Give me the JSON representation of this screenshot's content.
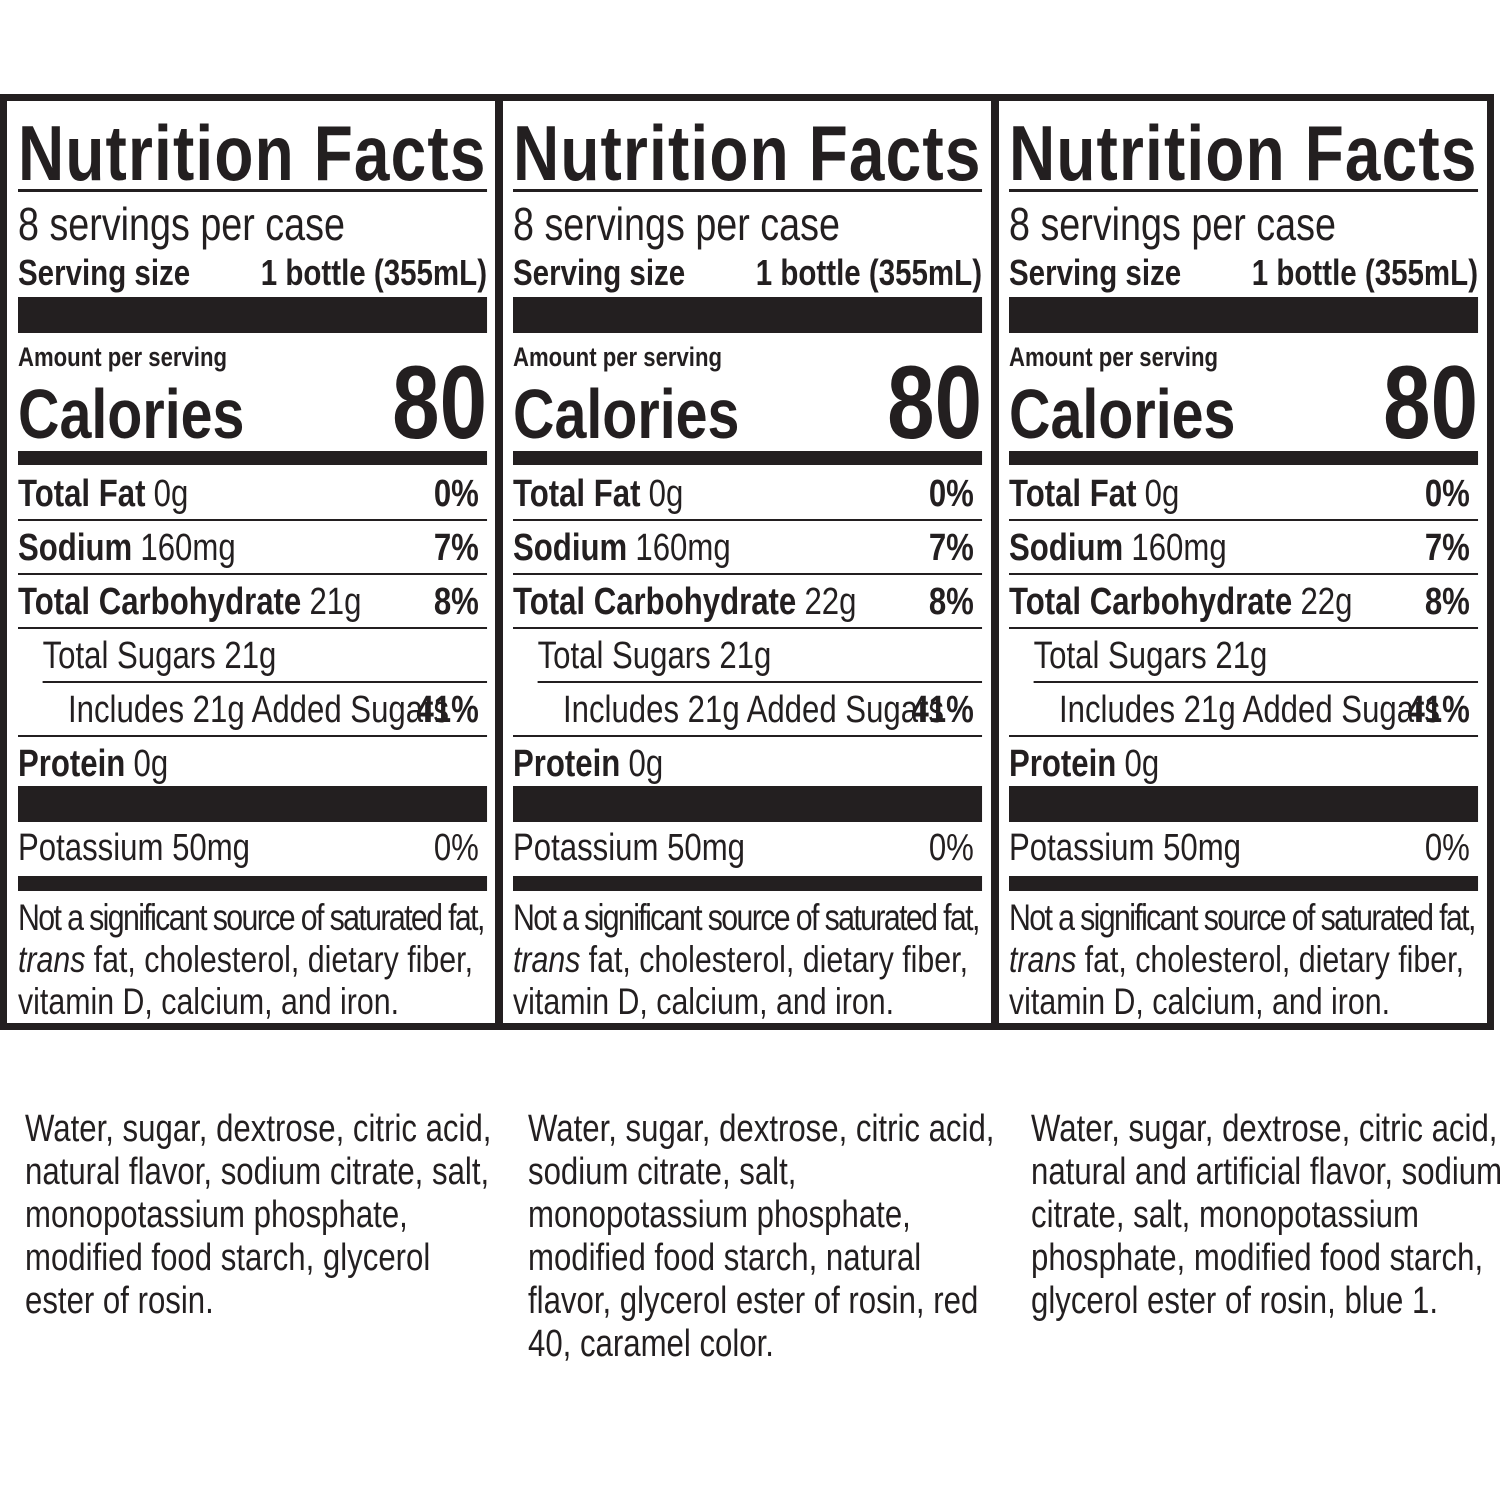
{
  "labels": [
    {
      "title": "Nutrition Facts",
      "servings": "8 servings per case",
      "serving_size_label": "Serving size",
      "serving_size": "1 bottle (355mL)",
      "amount_label": "Amount per serving",
      "calories_label": "Calories",
      "calories": "80",
      "rows": [
        {
          "name": "Total Fat",
          "amount": "0g",
          "dv": "0%"
        },
        {
          "name": "Sodium",
          "amount": "160mg",
          "dv": "7%"
        },
        {
          "name": "Total Carbohydrate",
          "amount": "21g",
          "dv": "8%"
        }
      ],
      "sugars": "Total Sugars 21g",
      "added_sugars": "Includes 21g Added Sugars",
      "added_sugars_dv": "41%",
      "protein": {
        "name": "Protein",
        "amount": "0g"
      },
      "potassium": "Potassium 50mg",
      "potassium_dv": "0%",
      "footnote": {
        "line1": "Not a significant source of saturated fat,",
        "italic": "trans",
        "line2": "fat, cholesterol, dietary fiber,",
        "line3": "vitamin D, calcium, and iron."
      }
    },
    {
      "title": "Nutrition Facts",
      "servings": "8 servings per case",
      "serving_size_label": "Serving size",
      "serving_size": "1 bottle (355mL)",
      "amount_label": "Amount per serving",
      "calories_label": "Calories",
      "calories": "80",
      "rows": [
        {
          "name": "Total Fat",
          "amount": "0g",
          "dv": "0%"
        },
        {
          "name": "Sodium",
          "amount": "160mg",
          "dv": "7%"
        },
        {
          "name": "Total Carbohydrate",
          "amount": "22g",
          "dv": "8%"
        }
      ],
      "sugars": "Total Sugars 21g",
      "added_sugars": "Includes 21g Added Sugars",
      "added_sugars_dv": "41%",
      "protein": {
        "name": "Protein",
        "amount": "0g"
      },
      "potassium": "Potassium 50mg",
      "potassium_dv": "0%",
      "footnote": {
        "line1": "Not a significant source of saturated fat,",
        "italic": "trans",
        "line2": "fat, cholesterol, dietary fiber,",
        "line3": "vitamin D, calcium, and iron."
      }
    },
    {
      "title": "Nutrition Facts",
      "servings": "8 servings per case",
      "serving_size_label": "Serving size",
      "serving_size": "1 bottle (355mL)",
      "amount_label": "Amount per serving",
      "calories_label": "Calories",
      "calories": "80",
      "rows": [
        {
          "name": "Total Fat",
          "amount": "0g",
          "dv": "0%"
        },
        {
          "name": "Sodium",
          "amount": "160mg",
          "dv": "7%"
        },
        {
          "name": "Total Carbohydrate",
          "amount": "22g",
          "dv": "8%"
        }
      ],
      "sugars": "Total Sugars 21g",
      "added_sugars": "Includes 21g Added Sugars",
      "added_sugars_dv": "41%",
      "protein": {
        "name": "Protein",
        "amount": "0g"
      },
      "potassium": "Potassium 50mg",
      "potassium_dv": "0%",
      "footnote": {
        "line1": "Not a significant source of saturated fat,",
        "italic": "trans",
        "line2": "fat, cholesterol, dietary fiber,",
        "line3": "vitamin D, calcium, and iron."
      }
    }
  ],
  "ingredients": [
    "Water, sugar, dextrose, citric acid, natural flavor, sodium citrate, salt, monopotassium phosphate, modified food starch, glycerol ester of rosin.",
    "Water, sugar, dextrose, citric acid, sodium citrate, salt, monopotassium phosphate, modified food starch, natural flavor, glycerol ester of rosin, red 40, caramel color.",
    "Water, sugar, dextrose, citric acid, natural and artificial flavor, sodium citrate, salt, monopotassium phosphate, modified food starch, glycerol ester of rosin, blue 1."
  ]
}
